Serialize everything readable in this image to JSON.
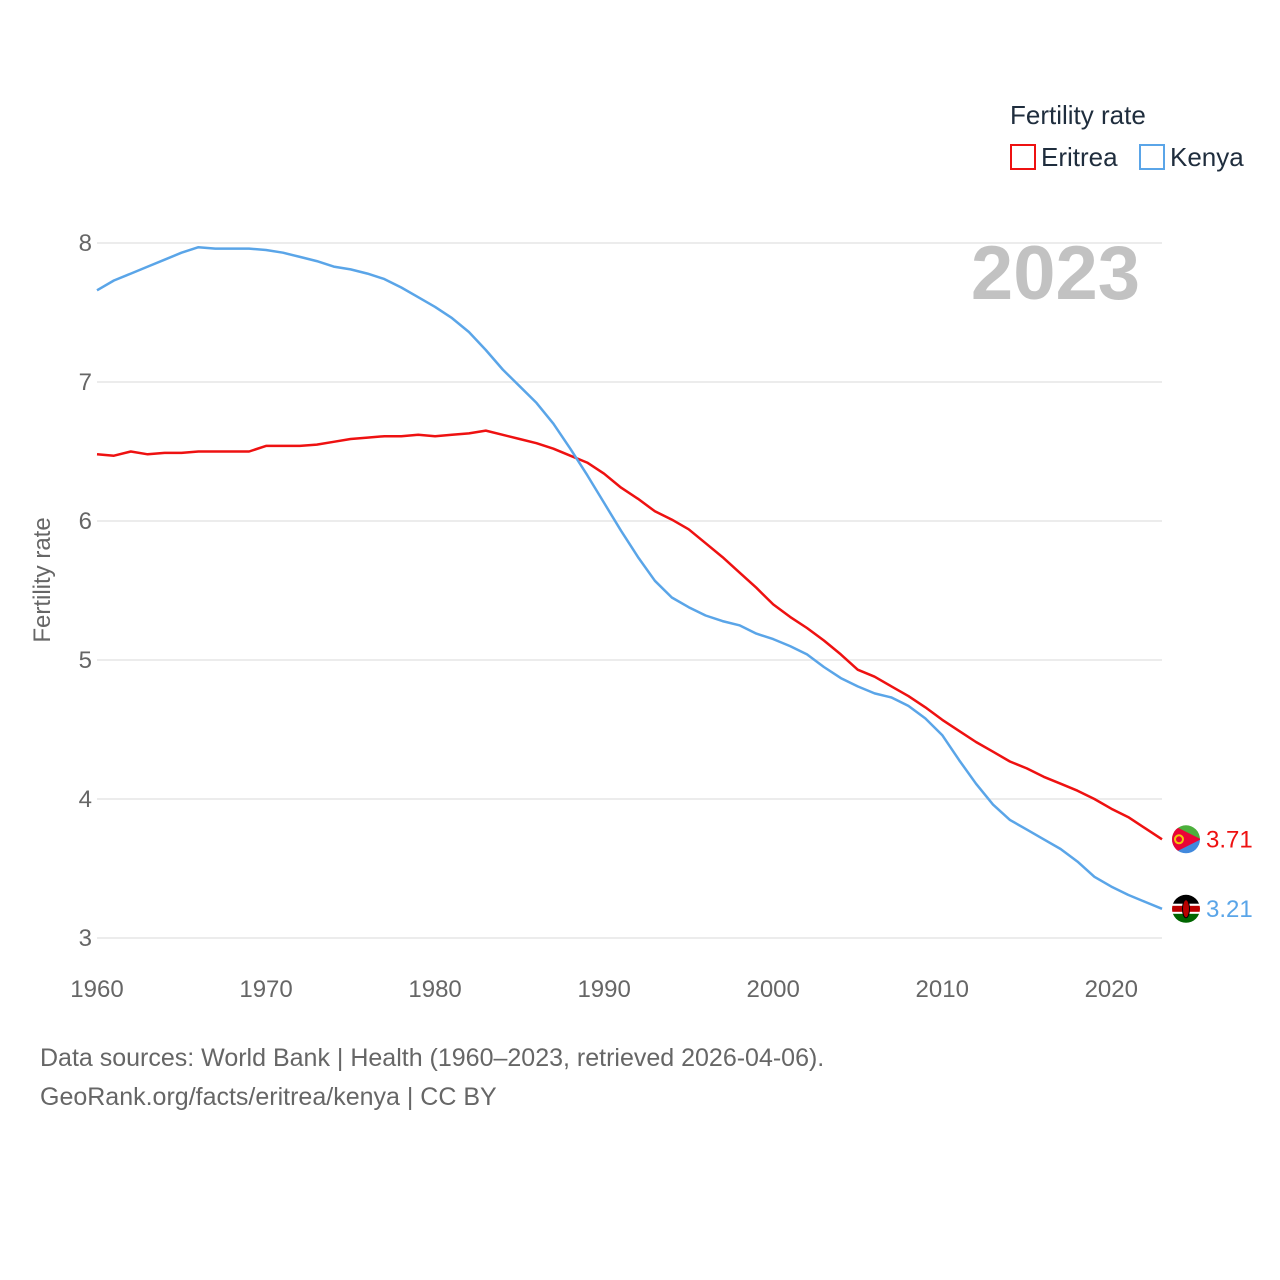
{
  "chart_data": {
    "type": "line",
    "ylabel": "Fertility rate",
    "legend_title": "Fertility rate",
    "legend_position": "top-right",
    "year_label": "2023",
    "xlim": [
      1960,
      2023
    ],
    "ylim": [
      3,
      8
    ],
    "x_ticks": [
      1960,
      1970,
      1980,
      1990,
      2000,
      2010,
      2020
    ],
    "y_ticks": [
      3,
      4,
      5,
      6,
      7,
      8
    ],
    "grid": true,
    "x": [
      1960,
      1961,
      1962,
      1963,
      1964,
      1965,
      1966,
      1967,
      1968,
      1969,
      1970,
      1971,
      1972,
      1973,
      1974,
      1975,
      1976,
      1977,
      1978,
      1979,
      1980,
      1981,
      1982,
      1983,
      1984,
      1985,
      1986,
      1987,
      1988,
      1989,
      1990,
      1991,
      1992,
      1993,
      1994,
      1995,
      1996,
      1997,
      1998,
      1999,
      2000,
      2001,
      2002,
      2003,
      2004,
      2005,
      2006,
      2007,
      2008,
      2009,
      2010,
      2011,
      2012,
      2013,
      2014,
      2015,
      2016,
      2017,
      2018,
      2019,
      2020,
      2021,
      2022,
      2023
    ],
    "series": [
      {
        "name": "Eritrea",
        "color": "#ee1111",
        "end_label": "3.71",
        "values": [
          6.48,
          6.47,
          6.5,
          6.48,
          6.49,
          6.49,
          6.5,
          6.5,
          6.5,
          6.5,
          6.54,
          6.54,
          6.54,
          6.55,
          6.57,
          6.59,
          6.6,
          6.61,
          6.61,
          6.62,
          6.61,
          6.62,
          6.63,
          6.65,
          6.62,
          6.59,
          6.56,
          6.52,
          6.47,
          6.42,
          6.34,
          6.24,
          6.16,
          6.07,
          6.01,
          5.94,
          5.84,
          5.74,
          5.63,
          5.52,
          5.4,
          5.31,
          5.23,
          5.14,
          5.04,
          4.93,
          4.88,
          4.81,
          4.74,
          4.66,
          4.57,
          4.49,
          4.41,
          4.34,
          4.27,
          4.22,
          4.16,
          4.11,
          4.06,
          4.0,
          3.93,
          3.87,
          3.79,
          3.71
        ]
      },
      {
        "name": "Kenya",
        "color": "#5aa5e8",
        "end_label": "3.21",
        "values": [
          7.66,
          7.73,
          7.78,
          7.83,
          7.88,
          7.93,
          7.97,
          7.96,
          7.96,
          7.96,
          7.95,
          7.93,
          7.9,
          7.87,
          7.83,
          7.81,
          7.78,
          7.74,
          7.68,
          7.61,
          7.54,
          7.46,
          7.36,
          7.23,
          7.09,
          6.97,
          6.85,
          6.7,
          6.52,
          6.33,
          6.13,
          5.93,
          5.74,
          5.57,
          5.45,
          5.38,
          5.32,
          5.28,
          5.25,
          5.19,
          5.15,
          5.1,
          5.04,
          4.95,
          4.87,
          4.81,
          4.76,
          4.73,
          4.67,
          4.58,
          4.46,
          4.28,
          4.11,
          3.96,
          3.85,
          3.78,
          3.71,
          3.64,
          3.55,
          3.44,
          3.37,
          3.31,
          3.26,
          3.21
        ]
      }
    ]
  },
  "footer": {
    "line1": "Data sources: World Bank | Health (1960–2023, retrieved 2026-04-06).",
    "line2": "GeoRank.org/facts/eritrea/kenya | CC BY"
  },
  "flags": {
    "eritrea": {
      "green": "#4caf3c",
      "blue": "#4189dd",
      "red": "#ea0437",
      "emblem": "#f2c40b"
    },
    "kenya": {
      "black": "#000000",
      "red": "#bb0000",
      "green": "#006600",
      "white": "#ffffff"
    }
  }
}
